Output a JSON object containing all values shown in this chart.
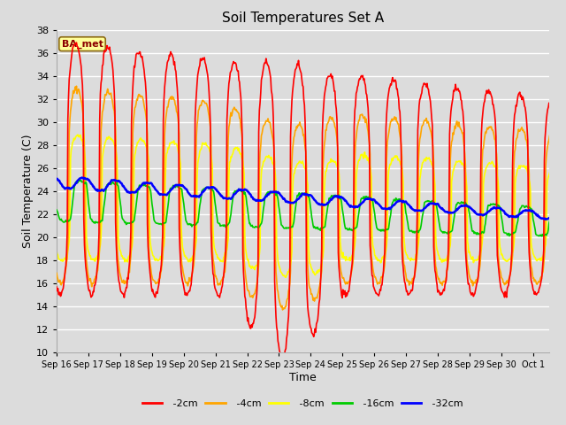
{
  "title": "Soil Temperatures Set A",
  "xlabel": "Time",
  "ylabel": "Soil Temperature (C)",
  "ylim": [
    10,
    38
  ],
  "yticks": [
    10,
    12,
    14,
    16,
    18,
    20,
    22,
    24,
    26,
    28,
    30,
    32,
    34,
    36,
    38
  ],
  "annotation": "BA_met",
  "annotation_color": "#8B0000",
  "annotation_bg": "#FFFF99",
  "series_colors": {
    "-2cm": "#FF0000",
    "-4cm": "#FFA500",
    "-8cm": "#FFFF00",
    "-16cm": "#00CC00",
    "-32cm": "#0000FF"
  },
  "background_color": "#DCDCDC",
  "grid_color": "#FFFFFF",
  "x_tick_labels": [
    "Sep 16",
    "Sep 17",
    "Sep 18",
    "Sep 19",
    "Sep 20",
    "Sep 21",
    "Sep 22",
    "Sep 23",
    "Sep 24",
    "Sep 25",
    "Sep 26",
    "Sep 27",
    "Sep 28",
    "Sep 29",
    "Sep 30",
    "Oct 1"
  ]
}
